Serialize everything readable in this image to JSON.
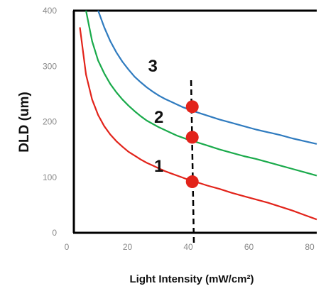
{
  "chart_data": {
    "type": "line",
    "xlabel": "Light Intensity (mW/cm²)",
    "ylabel": "DLD (um)",
    "xlim": [
      0,
      80
    ],
    "ylim": [
      0,
      400
    ],
    "x_ticks": [
      "0",
      "20",
      "40",
      "60",
      "80"
    ],
    "y_ticks": [
      "0",
      "100",
      "200",
      "300",
      "400"
    ],
    "grid": false,
    "series": [
      {
        "name": "1",
        "color": "#e2231a",
        "x": [
          2,
          4,
          6,
          8,
          10,
          12,
          14,
          16,
          18,
          20,
          22,
          24,
          26,
          28,
          30,
          32,
          34,
          36,
          38,
          40,
          44,
          48,
          52,
          56,
          60,
          64,
          68,
          72,
          76,
          80
        ],
        "y": [
          370,
          285,
          240,
          212,
          192,
          177,
          165,
          155,
          146,
          139,
          132,
          126,
          121,
          116,
          111,
          107,
          103,
          99,
          95,
          92,
          85,
          79,
          72,
          66,
          60,
          54,
          47,
          40,
          32,
          24
        ]
      },
      {
        "name": "2",
        "color": "#1aaa4b",
        "x": [
          4,
          6,
          8,
          10,
          12,
          14,
          16,
          18,
          20,
          22,
          24,
          26,
          28,
          30,
          32,
          34,
          36,
          38,
          40,
          44,
          48,
          52,
          56,
          60,
          64,
          68,
          72,
          76,
          80
        ],
        "y": [
          400,
          345,
          310,
          287,
          268,
          253,
          240,
          229,
          219,
          210,
          202,
          196,
          190,
          185,
          180,
          175,
          171,
          167,
          164,
          157,
          150,
          144,
          138,
          133,
          127,
          121,
          115,
          109,
          103
        ]
      },
      {
        "name": "3",
        "color": "#2f7bbf",
        "x": [
          8,
          10,
          12,
          14,
          16,
          18,
          20,
          22,
          24,
          26,
          28,
          30,
          32,
          34,
          36,
          38,
          40,
          44,
          48,
          52,
          56,
          60,
          64,
          68,
          72,
          76,
          80
        ],
        "y": [
          400,
          370,
          345,
          325,
          308,
          294,
          281,
          271,
          262,
          254,
          247,
          241,
          236,
          231,
          226,
          222,
          218,
          211,
          204,
          198,
          192,
          186,
          181,
          176,
          170,
          165,
          160
        ]
      }
    ],
    "markers": [
      {
        "series": "1",
        "x": 39,
        "y": 92,
        "color": "#e2231a"
      },
      {
        "series": "2",
        "x": 39,
        "y": 172,
        "color": "#e2231a"
      },
      {
        "series": "3",
        "x": 39,
        "y": 227,
        "color": "#e2231a"
      }
    ],
    "vline": {
      "x": 40,
      "style": "dashed",
      "y_from": 0,
      "y_to": 280
    },
    "curve_labels": [
      {
        "text": "1",
        "x": 28,
        "y": 110
      },
      {
        "text": "2",
        "x": 28,
        "y": 198
      },
      {
        "text": "3",
        "x": 26,
        "y": 290
      }
    ]
  }
}
